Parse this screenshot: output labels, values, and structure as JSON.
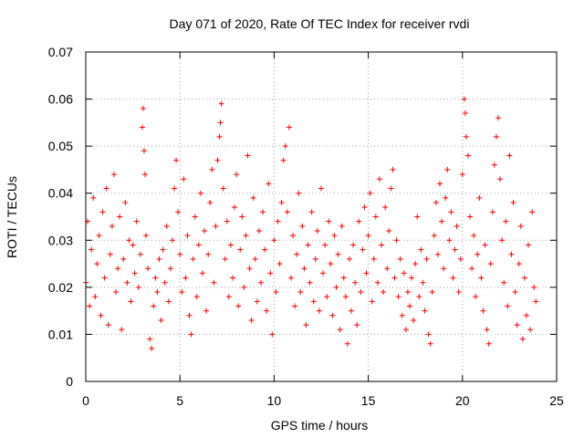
{
  "chart_data": {
    "type": "scatter",
    "title": "Day 071 of 2020, Rate Of TEC Index for receiver rvdi",
    "xlabel": "GPS time / hours",
    "ylabel": "ROTI / TECUs",
    "xlim": [
      0,
      25
    ],
    "ylim": [
      0,
      0.07
    ],
    "xticks": [
      "0",
      "5",
      "10",
      "15",
      "20",
      "25"
    ],
    "yticks": [
      "0",
      "0.01",
      "0.02",
      "0.03",
      "0.04",
      "0.05",
      "0.06",
      "0.07"
    ],
    "grid": true,
    "marker": "+",
    "color": "#ff0000",
    "series": [
      {
        "points": [
          [
            0.0,
            0.021
          ],
          [
            0.1,
            0.034
          ],
          [
            0.2,
            0.016
          ],
          [
            0.3,
            0.028
          ],
          [
            0.4,
            0.039
          ],
          [
            0.5,
            0.018
          ],
          [
            0.6,
            0.025
          ],
          [
            0.7,
            0.031
          ],
          [
            0.8,
            0.014
          ],
          [
            0.9,
            0.036
          ],
          [
            1.0,
            0.022
          ],
          [
            1.1,
            0.041
          ],
          [
            1.2,
            0.012
          ],
          [
            1.3,
            0.027
          ],
          [
            1.4,
            0.033
          ],
          [
            1.5,
            0.044
          ],
          [
            1.6,
            0.019
          ],
          [
            1.7,
            0.024
          ],
          [
            1.8,
            0.035
          ],
          [
            1.9,
            0.011
          ],
          [
            2.0,
            0.026
          ],
          [
            2.1,
            0.038
          ],
          [
            2.2,
            0.021
          ],
          [
            2.3,
            0.03
          ],
          [
            2.4,
            0.017
          ],
          [
            2.5,
            0.029
          ],
          [
            2.6,
            0.023
          ],
          [
            2.7,
            0.034
          ],
          [
            2.8,
            0.02
          ],
          [
            2.9,
            0.027
          ],
          [
            3.0,
            0.054
          ],
          [
            3.05,
            0.058
          ],
          [
            3.1,
            0.049
          ],
          [
            3.15,
            0.044
          ],
          [
            3.2,
            0.031
          ],
          [
            3.3,
            0.024
          ],
          [
            3.4,
            0.009
          ],
          [
            3.5,
            0.007
          ],
          [
            3.6,
            0.016
          ],
          [
            3.7,
            0.022
          ],
          [
            3.8,
            0.019
          ],
          [
            3.9,
            0.026
          ],
          [
            4.0,
            0.013
          ],
          [
            4.1,
            0.028
          ],
          [
            4.2,
            0.021
          ],
          [
            4.3,
            0.033
          ],
          [
            4.4,
            0.017
          ],
          [
            4.5,
            0.024
          ],
          [
            4.6,
            0.03
          ],
          [
            4.7,
            0.041
          ],
          [
            4.8,
            0.047
          ],
          [
            4.9,
            0.036
          ],
          [
            5.0,
            0.027
          ],
          [
            5.1,
            0.019
          ],
          [
            5.2,
            0.043
          ],
          [
            5.3,
            0.022
          ],
          [
            5.4,
            0.031
          ],
          [
            5.5,
            0.014
          ],
          [
            5.6,
            0.01
          ],
          [
            5.7,
            0.026
          ],
          [
            5.8,
            0.035
          ],
          [
            5.9,
            0.018
          ],
          [
            6.0,
            0.029
          ],
          [
            6.1,
            0.04
          ],
          [
            6.2,
            0.023
          ],
          [
            6.3,
            0.032
          ],
          [
            6.4,
            0.015
          ],
          [
            6.5,
            0.027
          ],
          [
            6.6,
            0.038
          ],
          [
            6.7,
            0.045
          ],
          [
            6.8,
            0.021
          ],
          [
            6.9,
            0.033
          ],
          [
            7.0,
            0.047
          ],
          [
            7.1,
            0.052
          ],
          [
            7.15,
            0.055
          ],
          [
            7.2,
            0.059
          ],
          [
            7.3,
            0.041
          ],
          [
            7.4,
            0.026
          ],
          [
            7.5,
            0.034
          ],
          [
            7.6,
            0.018
          ],
          [
            7.7,
            0.029
          ],
          [
            7.8,
            0.022
          ],
          [
            7.9,
            0.037
          ],
          [
            8.0,
            0.044
          ],
          [
            8.1,
            0.016
          ],
          [
            8.2,
            0.028
          ],
          [
            8.3,
            0.035
          ],
          [
            8.4,
            0.02
          ],
          [
            8.5,
            0.031
          ],
          [
            8.6,
            0.048
          ],
          [
            8.7,
            0.024
          ],
          [
            8.8,
            0.013
          ],
          [
            8.9,
            0.039
          ],
          [
            9.0,
            0.026
          ],
          [
            9.1,
            0.017
          ],
          [
            9.2,
            0.032
          ],
          [
            9.3,
            0.021
          ],
          [
            9.4,
            0.036
          ],
          [
            9.5,
            0.028
          ],
          [
            9.6,
            0.015
          ],
          [
            9.7,
            0.042
          ],
          [
            9.8,
            0.023
          ],
          [
            9.9,
            0.01
          ],
          [
            10.0,
            0.03
          ],
          [
            10.1,
            0.019
          ],
          [
            10.2,
            0.034
          ],
          [
            10.3,
            0.025
          ],
          [
            10.4,
            0.038
          ],
          [
            10.5,
            0.047
          ],
          [
            10.6,
            0.05
          ],
          [
            10.7,
            0.036
          ],
          [
            10.8,
            0.054
          ],
          [
            10.9,
            0.022
          ],
          [
            11.0,
            0.031
          ],
          [
            11.1,
            0.016
          ],
          [
            11.2,
            0.027
          ],
          [
            11.3,
            0.04
          ],
          [
            11.4,
            0.019
          ],
          [
            11.5,
            0.033
          ],
          [
            11.6,
            0.024
          ],
          [
            11.7,
            0.012
          ],
          [
            11.8,
            0.029
          ],
          [
            11.9,
            0.021
          ],
          [
            12.0,
            0.036
          ],
          [
            12.1,
            0.017
          ],
          [
            12.2,
            0.026
          ],
          [
            12.3,
            0.032
          ],
          [
            12.4,
            0.015
          ],
          [
            12.5,
            0.041
          ],
          [
            12.6,
            0.023
          ],
          [
            12.7,
            0.029
          ],
          [
            12.8,
            0.018
          ],
          [
            12.9,
            0.034
          ],
          [
            13.0,
            0.025
          ],
          [
            13.1,
            0.014
          ],
          [
            13.2,
            0.031
          ],
          [
            13.3,
            0.02
          ],
          [
            13.4,
            0.027
          ],
          [
            13.5,
            0.011
          ],
          [
            13.6,
            0.033
          ],
          [
            13.7,
            0.022
          ],
          [
            13.8,
            0.018
          ],
          [
            13.9,
            0.008
          ],
          [
            14.0,
            0.026
          ],
          [
            14.1,
            0.015
          ],
          [
            14.2,
            0.029
          ],
          [
            14.3,
            0.021
          ],
          [
            14.4,
            0.012
          ],
          [
            14.5,
            0.034
          ],
          [
            14.6,
            0.019
          ],
          [
            14.7,
            0.028
          ],
          [
            14.8,
            0.037
          ],
          [
            14.9,
            0.023
          ],
          [
            15.0,
            0.031
          ],
          [
            15.1,
            0.04
          ],
          [
            15.2,
            0.017
          ],
          [
            15.3,
            0.026
          ],
          [
            15.4,
            0.035
          ],
          [
            15.5,
            0.021
          ],
          [
            15.6,
            0.043
          ],
          [
            15.7,
            0.029
          ],
          [
            15.8,
            0.019
          ],
          [
            15.9,
            0.037
          ],
          [
            16.0,
            0.024
          ],
          [
            16.1,
            0.032
          ],
          [
            16.2,
            0.041
          ],
          [
            16.3,
            0.045
          ],
          [
            16.4,
            0.022
          ],
          [
            16.5,
            0.03
          ],
          [
            16.6,
            0.018
          ],
          [
            16.7,
            0.026
          ],
          [
            16.8,
            0.014
          ],
          [
            16.9,
            0.023
          ],
          [
            17.0,
            0.011
          ],
          [
            17.1,
            0.019
          ],
          [
            17.2,
            0.016
          ],
          [
            17.3,
            0.022
          ],
          [
            17.4,
            0.013
          ],
          [
            17.5,
            0.025
          ],
          [
            17.6,
            0.035
          ],
          [
            17.7,
            0.018
          ],
          [
            17.8,
            0.028
          ],
          [
            17.9,
            0.021
          ],
          [
            18.0,
            0.015
          ],
          [
            18.1,
            0.026
          ],
          [
            18.2,
            0.01
          ],
          [
            18.3,
            0.008
          ],
          [
            18.4,
            0.019
          ],
          [
            18.5,
            0.031
          ],
          [
            18.6,
            0.038
          ],
          [
            18.7,
            0.027
          ],
          [
            18.8,
            0.042
          ],
          [
            18.9,
            0.034
          ],
          [
            19.0,
            0.024
          ],
          [
            19.1,
            0.039
          ],
          [
            19.2,
            0.045
          ],
          [
            19.3,
            0.03
          ],
          [
            19.4,
            0.036
          ],
          [
            19.5,
            0.022
          ],
          [
            19.6,
            0.028
          ],
          [
            19.7,
            0.033
          ],
          [
            19.8,
            0.019
          ],
          [
            19.9,
            0.026
          ],
          [
            20.0,
            0.044
          ],
          [
            20.1,
            0.06
          ],
          [
            20.15,
            0.057
          ],
          [
            20.2,
            0.052
          ],
          [
            20.3,
            0.048
          ],
          [
            20.4,
            0.035
          ],
          [
            20.5,
            0.024
          ],
          [
            20.6,
            0.031
          ],
          [
            20.7,
            0.018
          ],
          [
            20.8,
            0.027
          ],
          [
            20.9,
            0.039
          ],
          [
            21.0,
            0.022
          ],
          [
            21.1,
            0.015
          ],
          [
            21.2,
            0.029
          ],
          [
            21.3,
            0.011
          ],
          [
            21.4,
            0.008
          ],
          [
            21.5,
            0.025
          ],
          [
            21.6,
            0.036
          ],
          [
            21.7,
            0.046
          ],
          [
            21.8,
            0.052
          ],
          [
            21.9,
            0.056
          ],
          [
            22.0,
            0.043
          ],
          [
            22.1,
            0.03
          ],
          [
            22.2,
            0.021
          ],
          [
            22.3,
            0.034
          ],
          [
            22.4,
            0.016
          ],
          [
            22.5,
            0.048
          ],
          [
            22.6,
            0.027
          ],
          [
            22.7,
            0.038
          ],
          [
            22.8,
            0.019
          ],
          [
            22.9,
            0.012
          ],
          [
            23.0,
            0.025
          ],
          [
            23.1,
            0.033
          ],
          [
            23.2,
            0.009
          ],
          [
            23.3,
            0.022
          ],
          [
            23.4,
            0.014
          ],
          [
            23.5,
            0.029
          ],
          [
            23.6,
            0.011
          ],
          [
            23.7,
            0.036
          ],
          [
            23.8,
            0.02
          ],
          [
            23.9,
            0.017
          ]
        ]
      }
    ]
  }
}
